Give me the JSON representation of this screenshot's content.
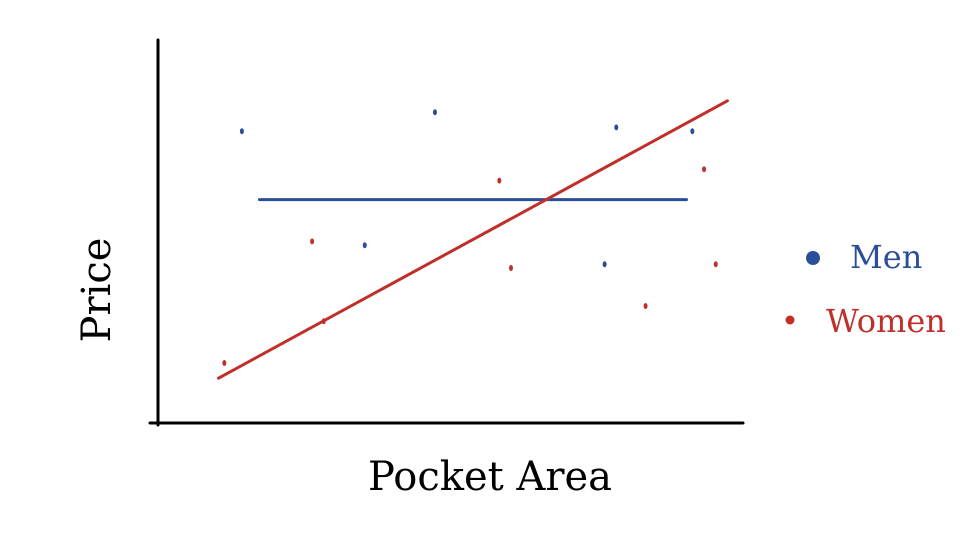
{
  "chart_data": {
    "type": "scatter",
    "title": "",
    "xlabel": "Pocket Area",
    "ylabel": "Price",
    "xlim": [
      0,
      100
    ],
    "ylim": [
      0,
      100
    ],
    "grid": false,
    "legend_position": "right",
    "series": [
      {
        "name": "Men",
        "color": "#2b4e9a",
        "points": [
          {
            "x": 14,
            "y": 76
          },
          {
            "x": 47,
            "y": 81
          },
          {
            "x": 78,
            "y": 77
          },
          {
            "x": 91,
            "y": 76
          },
          {
            "x": 35,
            "y": 46
          },
          {
            "x": 76,
            "y": 41
          }
        ],
        "trend": {
          "x": [
            17,
            90
          ],
          "y": [
            58,
            58
          ]
        }
      },
      {
        "name": "Women",
        "color": "#c0302b",
        "points": [
          {
            "x": 58,
            "y": 63
          },
          {
            "x": 93,
            "y": 66
          },
          {
            "x": 26,
            "y": 47
          },
          {
            "x": 60,
            "y": 40
          },
          {
            "x": 95,
            "y": 41
          },
          {
            "x": 83,
            "y": 30
          },
          {
            "x": 28,
            "y": 26
          },
          {
            "x": 11,
            "y": 15
          }
        ],
        "trend": {
          "x": [
            10,
            97
          ],
          "y": [
            11,
            84
          ]
        }
      }
    ]
  }
}
